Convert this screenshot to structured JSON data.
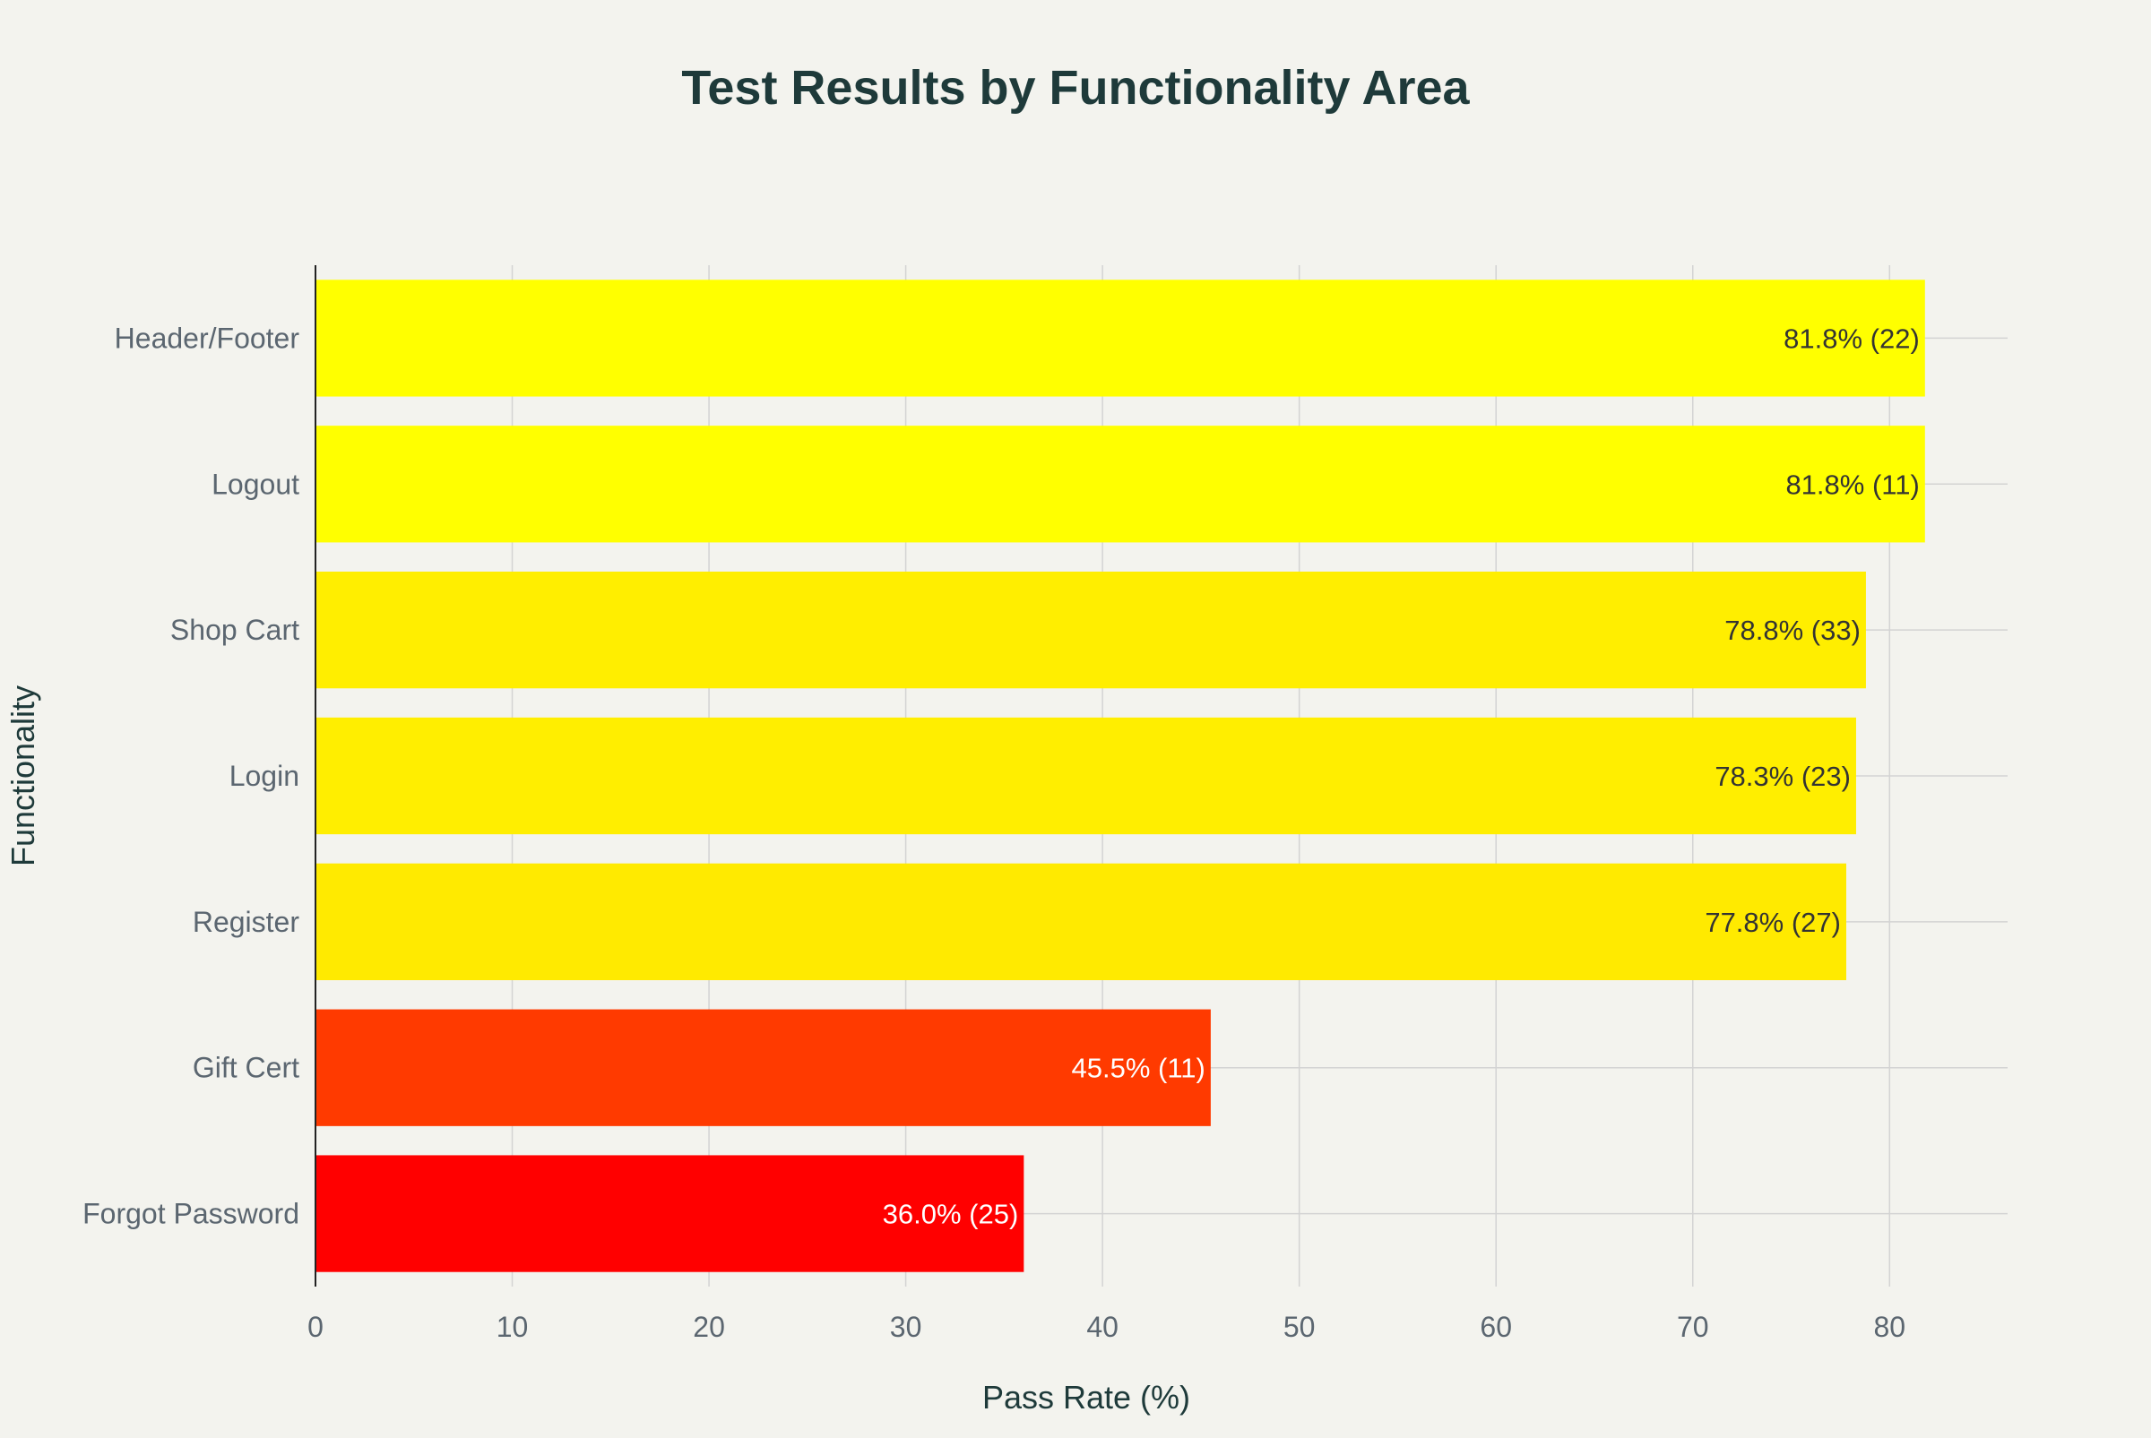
{
  "chart_data": {
    "type": "bar",
    "orientation": "horizontal",
    "title": "Test Results by Functionality Area",
    "xlabel": "Pass Rate (%)",
    "ylabel": "Functionality",
    "xlim": [
      0,
      86
    ],
    "xticks": [
      0,
      10,
      20,
      30,
      40,
      50,
      60,
      70,
      80
    ],
    "grid": true,
    "categories": [
      "Header/Footer",
      "Logout",
      "Shop Cart",
      "Login",
      "Register",
      "Gift Cert",
      "Forgot Password"
    ],
    "values": [
      81.8,
      81.8,
      78.8,
      78.3,
      77.8,
      45.5,
      36.0
    ],
    "labels": [
      "81.8% (22)",
      "81.8% (11)",
      "78.8% (33)",
      "78.3% (23)",
      "77.8% (27)",
      "45.5% (11)",
      "36.0% (25)"
    ],
    "colors": [
      "#ffff00",
      "#ffff00",
      "#ffee00",
      "#ffee00",
      "#ffea00",
      "#ff3a00",
      "#ff0000"
    ],
    "label_colors": [
      "#333333",
      "#333333",
      "#333333",
      "#333333",
      "#333333",
      "#ffffff",
      "#ffffff"
    ]
  }
}
